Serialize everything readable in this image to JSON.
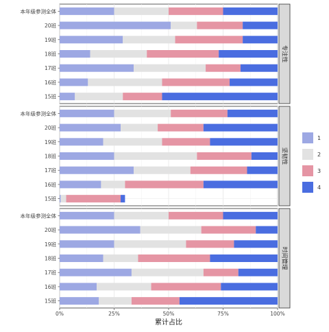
{
  "chart_data": {
    "type": "bar",
    "orientation": "horizontal",
    "stacked": true,
    "xlabel": "累计占比",
    "xlim": [
      0,
      1
    ],
    "xticks": [
      "0%",
      "25%",
      "50%",
      "75%",
      "100%"
    ],
    "grid": true,
    "legend": {
      "position": "right",
      "labels": [
        "1",
        "2",
        "3",
        "4"
      ],
      "colors": [
        "#9DA8E3",
        "#E2E2E2",
        "#E595A4",
        "#4A6DE0"
      ]
    },
    "categories": [
      "本年级参测全体",
      "20班",
      "19班",
      "18班",
      "17班",
      "16班",
      "15班"
    ],
    "panels": [
      {
        "strip_label": "专注性",
        "values": [
          [
            0.25,
            0.25,
            0.25,
            0.25
          ],
          [
            0.51,
            0.12,
            0.21,
            0.16
          ],
          [
            0.29,
            0.24,
            0.31,
            0.16
          ],
          [
            0.14,
            0.26,
            0.33,
            0.27
          ],
          [
            0.34,
            0.33,
            0.16,
            0.17
          ],
          [
            0.13,
            0.34,
            0.31,
            0.22
          ],
          [
            0.07,
            0.22,
            0.18,
            0.53
          ]
        ]
      },
      {
        "strip_label": "坚韧性",
        "values": [
          [
            0.25,
            0.26,
            0.26,
            0.23
          ],
          [
            0.28,
            0.17,
            0.21,
            0.34
          ],
          [
            0.2,
            0.27,
            0.22,
            0.31
          ],
          [
            0.25,
            0.38,
            0.25,
            0.12
          ],
          [
            0.34,
            0.26,
            0.26,
            0.14
          ],
          [
            0.19,
            0.11,
            0.36,
            0.34
          ],
          [
            0.005,
            0.025,
            0.25,
            0.02
          ]
        ]
      },
      {
        "strip_label": "时间管理",
        "values": [
          [
            0.25,
            0.25,
            0.25,
            0.25
          ],
          [
            0.37,
            0.28,
            0.25,
            0.1
          ],
          [
            0.25,
            0.33,
            0.22,
            0.2
          ],
          [
            0.2,
            0.16,
            0.33,
            0.31
          ],
          [
            0.33,
            0.33,
            0.16,
            0.18
          ],
          [
            0.17,
            0.25,
            0.32,
            0.26
          ],
          [
            0.18,
            0.15,
            0.22,
            0.45
          ]
        ]
      }
    ]
  }
}
